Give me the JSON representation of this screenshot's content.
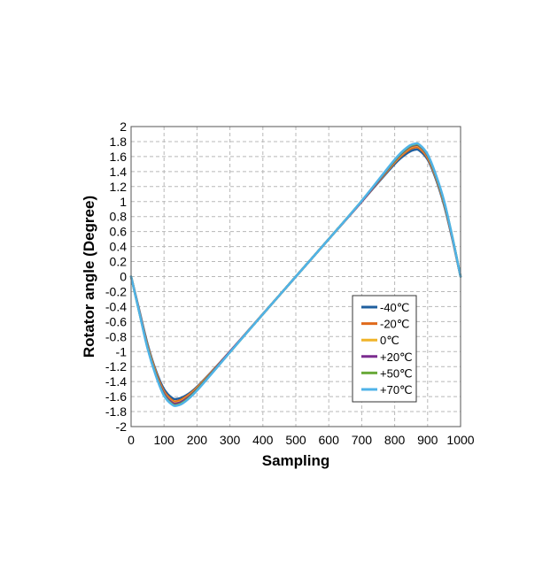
{
  "chart_data": {
    "type": "line",
    "title": "",
    "xlabel": "Sampling",
    "ylabel": "Rotator angle (Degree)",
    "xlim": [
      0,
      1000
    ],
    "ylim": [
      -2,
      2
    ],
    "x_ticks": [
      0,
      100,
      200,
      300,
      400,
      500,
      600,
      700,
      800,
      900,
      1000
    ],
    "y_ticks": [
      2,
      1.8,
      1.6,
      1.4,
      1.2,
      1,
      0.8,
      0.6,
      0.4,
      0.2,
      0,
      -0.2,
      -0.4,
      -0.6,
      -0.8,
      -1,
      -1.2,
      -1.4,
      -1.6,
      -1.8,
      -2
    ],
    "grid": true,
    "legend_position": "lower-right",
    "series": [
      {
        "name": "-40℃",
        "color": "#1f5f9f",
        "points": [
          [
            0,
            0
          ],
          [
            25,
            -0.45
          ],
          [
            50,
            -0.9
          ],
          [
            75,
            -1.25
          ],
          [
            100,
            -1.5
          ],
          [
            125,
            -1.62
          ],
          [
            140,
            -1.63
          ],
          [
            160,
            -1.6
          ],
          [
            200,
            -1.47
          ],
          [
            300,
            -1.0
          ],
          [
            400,
            -0.5
          ],
          [
            500,
            0
          ],
          [
            600,
            0.5
          ],
          [
            700,
            1.0
          ],
          [
            800,
            1.5
          ],
          [
            840,
            1.65
          ],
          [
            860,
            1.69
          ],
          [
            875,
            1.68
          ],
          [
            900,
            1.56
          ],
          [
            925,
            1.3
          ],
          [
            950,
            0.95
          ],
          [
            975,
            0.5
          ],
          [
            1000,
            0
          ]
        ]
      },
      {
        "name": "-20℃",
        "color": "#e06a1b",
        "points": [
          [
            0,
            0
          ],
          [
            25,
            -0.46
          ],
          [
            50,
            -0.92
          ],
          [
            75,
            -1.27
          ],
          [
            100,
            -1.53
          ],
          [
            125,
            -1.65
          ],
          [
            140,
            -1.66
          ],
          [
            160,
            -1.62
          ],
          [
            200,
            -1.48
          ],
          [
            300,
            -1.0
          ],
          [
            400,
            -0.5
          ],
          [
            500,
            0
          ],
          [
            600,
            0.5
          ],
          [
            700,
            1.0
          ],
          [
            800,
            1.52
          ],
          [
            840,
            1.68
          ],
          [
            860,
            1.72
          ],
          [
            875,
            1.71
          ],
          [
            900,
            1.58
          ],
          [
            925,
            1.32
          ],
          [
            950,
            0.97
          ],
          [
            975,
            0.51
          ],
          [
            1000,
            0
          ]
        ]
      },
      {
        "name": "0℃",
        "color": "#f0b429",
        "points": [
          [
            0,
            0
          ],
          [
            25,
            -0.47
          ],
          [
            50,
            -0.93
          ],
          [
            75,
            -1.29
          ],
          [
            100,
            -1.55
          ],
          [
            125,
            -1.67
          ],
          [
            140,
            -1.68
          ],
          [
            160,
            -1.64
          ],
          [
            200,
            -1.49
          ],
          [
            300,
            -1.0
          ],
          [
            400,
            -0.5
          ],
          [
            500,
            0
          ],
          [
            600,
            0.5
          ],
          [
            700,
            1.0
          ],
          [
            800,
            1.53
          ],
          [
            840,
            1.7
          ],
          [
            860,
            1.74
          ],
          [
            875,
            1.73
          ],
          [
            900,
            1.6
          ],
          [
            925,
            1.33
          ],
          [
            950,
            0.98
          ],
          [
            975,
            0.52
          ],
          [
            1000,
            0
          ]
        ]
      },
      {
        "name": "+20℃",
        "color": "#7b2c8f",
        "points": [
          [
            0,
            0
          ],
          [
            25,
            -0.47
          ],
          [
            50,
            -0.94
          ],
          [
            75,
            -1.3
          ],
          [
            100,
            -1.56
          ],
          [
            125,
            -1.68
          ],
          [
            140,
            -1.69
          ],
          [
            160,
            -1.65
          ],
          [
            200,
            -1.5
          ],
          [
            300,
            -1.0
          ],
          [
            400,
            -0.5
          ],
          [
            500,
            0
          ],
          [
            600,
            0.5
          ],
          [
            700,
            1.0
          ],
          [
            800,
            1.54
          ],
          [
            840,
            1.71
          ],
          [
            860,
            1.75
          ],
          [
            875,
            1.74
          ],
          [
            900,
            1.61
          ],
          [
            925,
            1.34
          ],
          [
            950,
            0.99
          ],
          [
            975,
            0.52
          ],
          [
            1000,
            0
          ]
        ]
      },
      {
        "name": "+50℃",
        "color": "#6aaa3a",
        "points": [
          [
            0,
            0
          ],
          [
            25,
            -0.48
          ],
          [
            50,
            -0.95
          ],
          [
            75,
            -1.31
          ],
          [
            100,
            -1.58
          ],
          [
            125,
            -1.7
          ],
          [
            140,
            -1.71
          ],
          [
            160,
            -1.67
          ],
          [
            200,
            -1.51
          ],
          [
            300,
            -1.01
          ],
          [
            400,
            -0.5
          ],
          [
            500,
            0
          ],
          [
            600,
            0.5
          ],
          [
            700,
            1.01
          ],
          [
            800,
            1.55
          ],
          [
            840,
            1.72
          ],
          [
            860,
            1.76
          ],
          [
            875,
            1.75
          ],
          [
            900,
            1.62
          ],
          [
            925,
            1.35
          ],
          [
            950,
            1.0
          ],
          [
            975,
            0.53
          ],
          [
            1000,
            0
          ]
        ]
      },
      {
        "name": "+70℃",
        "color": "#4fb3e8",
        "points": [
          [
            0,
            0
          ],
          [
            25,
            -0.48
          ],
          [
            50,
            -0.96
          ],
          [
            75,
            -1.32
          ],
          [
            100,
            -1.59
          ],
          [
            125,
            -1.71
          ],
          [
            140,
            -1.72
          ],
          [
            160,
            -1.68
          ],
          [
            200,
            -1.52
          ],
          [
            300,
            -1.01
          ],
          [
            400,
            -0.5
          ],
          [
            500,
            0
          ],
          [
            600,
            0.5
          ],
          [
            700,
            1.01
          ],
          [
            800,
            1.56
          ],
          [
            840,
            1.73
          ],
          [
            860,
            1.77
          ],
          [
            875,
            1.76
          ],
          [
            900,
            1.63
          ],
          [
            925,
            1.36
          ],
          [
            950,
            1.01
          ],
          [
            975,
            0.53
          ],
          [
            1000,
            0
          ]
        ]
      }
    ]
  }
}
